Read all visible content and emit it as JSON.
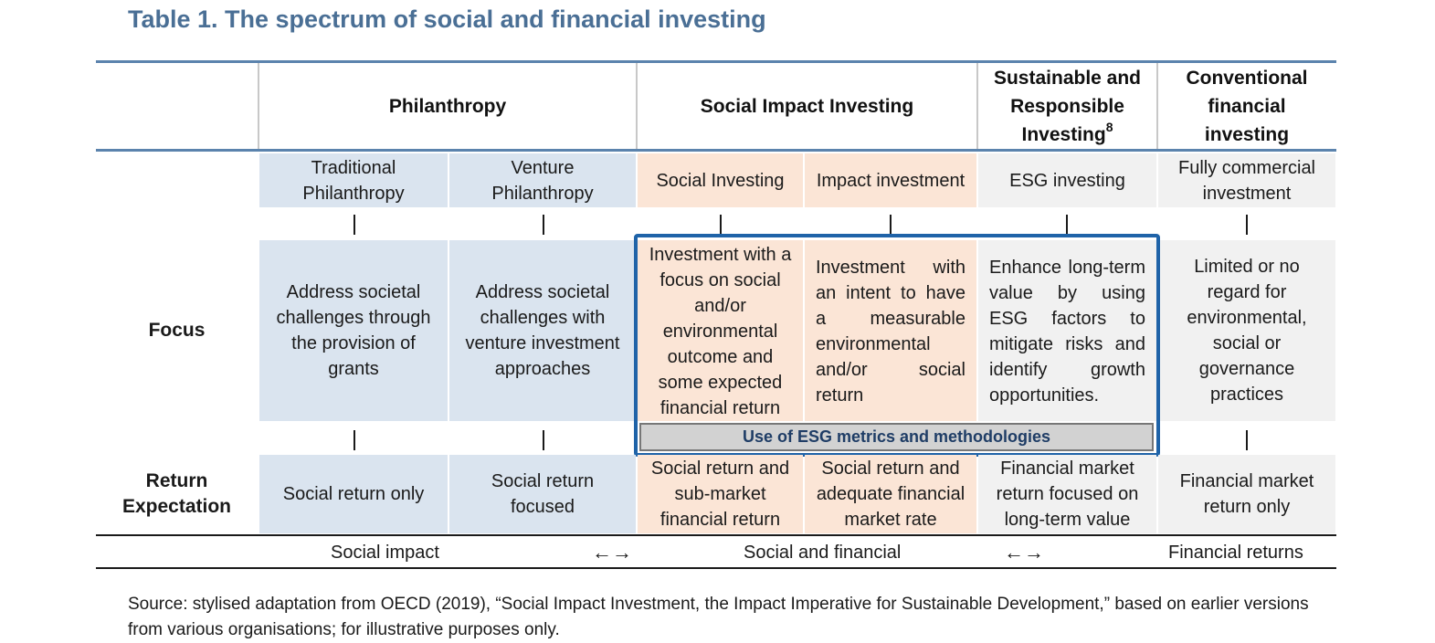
{
  "title": "Table 1. The spectrum of social and financial investing",
  "headers": {
    "philanthropy": "Philanthropy",
    "social_impact": "Social Impact Investing",
    "sustainable": "Sustainable and Responsible Investing",
    "sustainable_footnote": "8",
    "conventional": "Conventional financial investing"
  },
  "categories": [
    "Traditional Philanthropy",
    "Venture Philanthropy",
    "Social Investing",
    "Impact investment",
    "ESG investing",
    "Fully commercial investment"
  ],
  "row_labels": {
    "focus": "Focus",
    "return_expectation": "Return Expectation"
  },
  "focus": [
    "Address societal challenges through the provision of grants",
    "Address societal challenges with venture investment approaches",
    "Investment with a focus on social and/or environmental outcome and some expected financial return",
    "Investment with an intent to have a measurable environmental and/or social return",
    "Enhance long-term value by using ESG factors to mitigate risks and identify growth opportunities.",
    "Limited or no regard for environmental, social or governance practices"
  ],
  "esg_band": "Use of ESG metrics and methodologies",
  "returns": [
    "Social return only",
    "Social return focused",
    "Social return and sub-market financial return",
    "Social return and adequate financial market rate",
    "Financial market return focused on long-term value",
    "Financial market return only"
  ],
  "spectrum": {
    "social_impact": "Social impact",
    "arrow1": "←→",
    "social_financial": "Social and financial",
    "arrow2": "←→",
    "financial_returns": "Financial returns"
  },
  "source": "Source: stylised adaptation from OECD (2019), “Social Impact Investment, the Impact Imperative for Sustainable Development,” based on earlier versions from various organisations; for illustrative purposes only."
}
